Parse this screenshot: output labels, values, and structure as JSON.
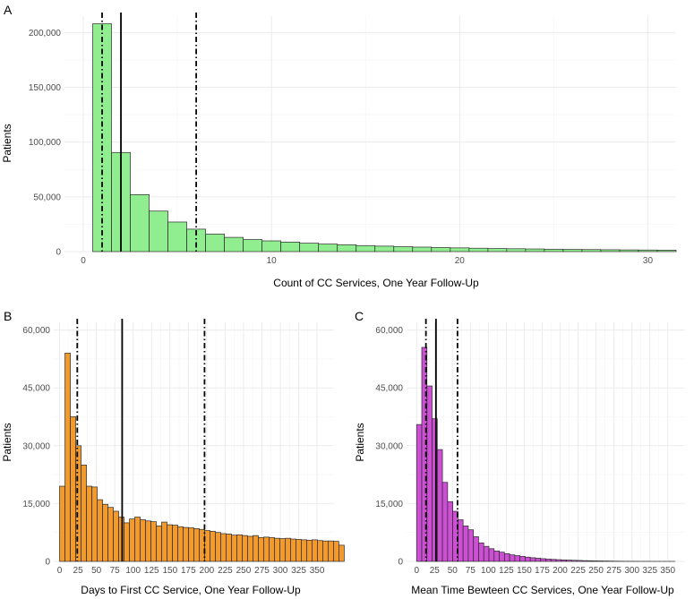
{
  "chart_data": [
    {
      "panel_label": "A",
      "type": "bar",
      "subtype": "histogram",
      "fill": "#90EE90",
      "stroke": "#2b2b2b",
      "xlabel": "Count of CC Services, One Year Follow-Up",
      "ylabel": "Patients",
      "xlim": [
        -1,
        31.5
      ],
      "ylim": [
        0,
        215000
      ],
      "xticks": [
        0,
        10,
        20,
        30
      ],
      "xtick_labels": [
        "0",
        "10",
        "20",
        "30"
      ],
      "yticks": [
        0,
        50000,
        100000,
        150000,
        200000
      ],
      "ytick_labels": [
        "0",
        "50,000",
        "100,000",
        "150,000",
        "200,000"
      ],
      "bins": [
        1,
        2,
        3,
        4,
        5,
        6,
        7,
        8,
        9,
        10,
        11,
        12,
        13,
        14,
        15,
        16,
        17,
        18,
        19,
        20,
        21,
        22,
        23,
        24,
        25,
        26,
        27,
        28,
        29,
        30,
        31
      ],
      "values": [
        208000,
        90500,
        52000,
        37000,
        27000,
        20500,
        16000,
        13000,
        11000,
        9800,
        8700,
        7700,
        6900,
        6200,
        5500,
        5000,
        4500,
        4100,
        3700,
        3400,
        3100,
        2800,
        2600,
        2400,
        2200,
        2000,
        1850,
        1700,
        1550,
        1450,
        1350
      ],
      "vlines": [
        {
          "x": 1,
          "style": "dotdash"
        },
        {
          "x": 2,
          "style": "solid"
        },
        {
          "x": 6,
          "style": "dotdash"
        }
      ]
    },
    {
      "panel_label": "B",
      "type": "bar",
      "subtype": "histogram",
      "fill": "#F39A2C",
      "stroke": "#2b2b2b",
      "xlabel": "Days to First CC Service, One Year Follow-Up",
      "ylabel": "Patients",
      "xlim": [
        -8,
        373
      ],
      "ylim": [
        0,
        62000
      ],
      "binwidth": 7.3,
      "xticks": [
        0,
        25,
        50,
        75,
        100,
        125,
        150,
        175,
        200,
        225,
        250,
        275,
        300,
        325,
        350
      ],
      "xtick_labels": [
        "0",
        "25",
        "50",
        "75",
        "100",
        "125",
        "150",
        "175",
        "200",
        "225",
        "250",
        "275",
        "300",
        "325",
        "350"
      ],
      "yticks": [
        0,
        15000,
        30000,
        45000,
        60000
      ],
      "ytick_labels": [
        "0",
        "15,000",
        "30,000",
        "45,000",
        "60,000"
      ],
      "values": [
        19500,
        54000,
        37500,
        30000,
        25000,
        19500,
        19300,
        16000,
        14800,
        14000,
        13000,
        11500,
        10000,
        11000,
        11500,
        10800,
        10500,
        10300,
        9200,
        10200,
        9500,
        9400,
        9000,
        8800,
        8700,
        8500,
        8300,
        8000,
        7800,
        7500,
        7200,
        7100,
        6800,
        6900,
        6700,
        6500,
        6700,
        6200,
        6300,
        6200,
        6000,
        5900,
        6000,
        5800,
        5700,
        5600,
        5500,
        5600,
        5400,
        5300,
        5300,
        5200,
        4200
      ],
      "vlines": [
        {
          "x": 24,
          "style": "dotdash"
        },
        {
          "x": 85,
          "style": "solid"
        },
        {
          "x": 197,
          "style": "dotdash"
        }
      ]
    },
    {
      "panel_label": "C",
      "type": "bar",
      "subtype": "histogram",
      "fill": "#CC4FD4",
      "stroke": "#2b2b2b",
      "xlabel": "Mean Time Bewteen CC Services, One Year Follow-Up",
      "ylabel": "Patients",
      "xlim": [
        -14,
        374
      ],
      "ylim": [
        0,
        62000
      ],
      "binwidth": 7.2,
      "xticks": [
        0,
        25,
        50,
        75,
        100,
        125,
        150,
        175,
        200,
        225,
        250,
        275,
        300,
        325,
        350
      ],
      "xtick_labels": [
        "0",
        "25",
        "50",
        "75",
        "100",
        "125",
        "150",
        "175",
        "200",
        "225",
        "250",
        "275",
        "300",
        "325",
        "350"
      ],
      "yticks": [
        0,
        15000,
        30000,
        45000,
        60000
      ],
      "ytick_labels": [
        "0",
        "15,000",
        "30,000",
        "45,000",
        "60,000"
      ],
      "values": [
        35500,
        55500,
        45500,
        37000,
        29000,
        20500,
        15500,
        13000,
        10800,
        9200,
        8200,
        6400,
        4800,
        3900,
        3300,
        2700,
        2400,
        2000,
        1700,
        1500,
        1300,
        1100,
        950,
        820,
        700,
        600,
        520,
        450,
        380,
        330,
        280,
        240,
        200,
        170,
        140,
        120,
        100,
        80,
        60,
        45,
        35,
        25,
        20,
        15,
        12,
        10,
        8,
        6,
        5,
        4
      ],
      "vlines": [
        {
          "x": 13,
          "style": "dotdash"
        },
        {
          "x": 27,
          "style": "solid"
        },
        {
          "x": 57,
          "style": "dotdash"
        }
      ]
    }
  ]
}
